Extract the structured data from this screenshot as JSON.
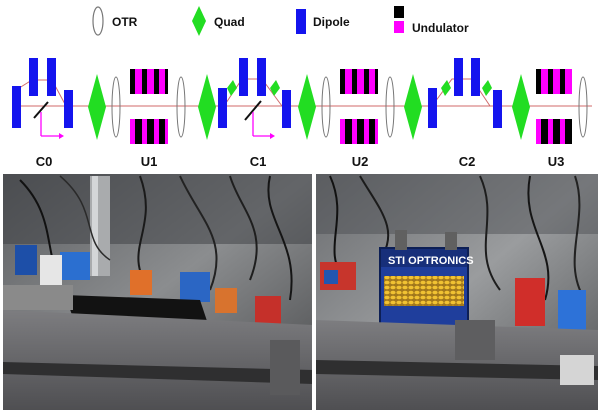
{
  "legend": {
    "otr": "OTR",
    "quad": "Quad",
    "dipole": "Dipole",
    "undulator": "Undulator"
  },
  "sections": [
    "C0",
    "U1",
    "C1",
    "U2",
    "C2",
    "U3"
  ],
  "colors": {
    "quad": "#22dd22",
    "dipole": "#1414ee",
    "undulator_black": "#000000",
    "undulator_magenta": "#ff00ff",
    "beamline": "#d06a6a",
    "otr_outline": "#777777",
    "screen_arrow": "#ff00ff",
    "photo_left_label": "#8a8a8a"
  },
  "icons": {
    "otr": "ellipse-outline",
    "quad": "green-diamond",
    "dipole": "blue-rectangle",
    "undulator": "black-magenta-stripes"
  },
  "photos": {
    "left": "photo-left-c0-u1-c1-hardware",
    "right": "photo-right-sti-optronics-undulator",
    "right_sign": "STI OPTRONICS"
  }
}
